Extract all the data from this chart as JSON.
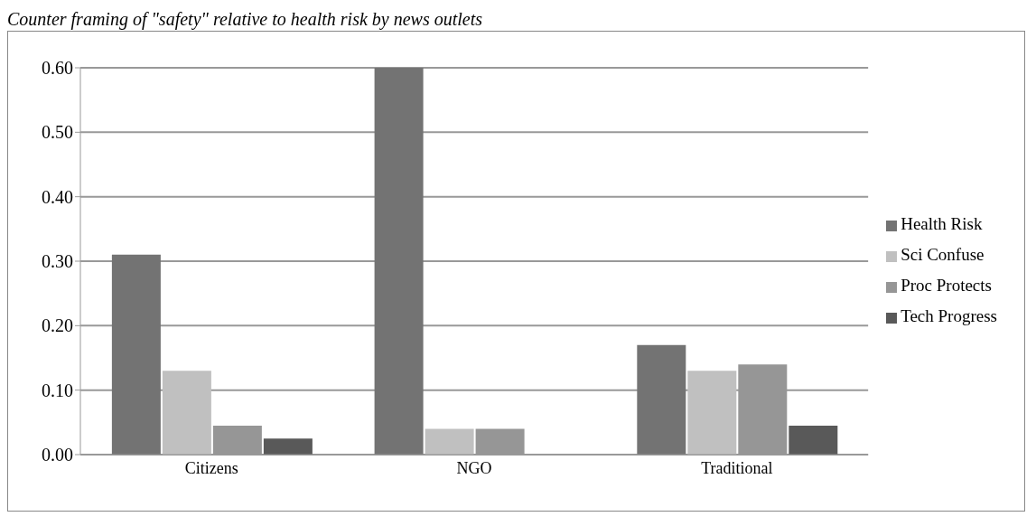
{
  "chart_data": {
    "type": "bar",
    "title": "Counter framing of \"safety\" relative to health risk by news outlets",
    "categories": [
      "Citizens",
      "NGO",
      "Traditional"
    ],
    "series": [
      {
        "name": "Health Risk",
        "color": "#737373",
        "values": [
          0.31,
          0.6,
          0.17
        ]
      },
      {
        "name": "Sci Confuse",
        "color": "#c0c0c0",
        "values": [
          0.13,
          0.04,
          0.13
        ]
      },
      {
        "name": "Proc Protects",
        "color": "#969696",
        "values": [
          0.045,
          0.04,
          0.14
        ]
      },
      {
        "name": "Tech Progress",
        "color": "#595959",
        "values": [
          0.025,
          0,
          0.045
        ]
      }
    ],
    "ylim": [
      0,
      0.6
    ],
    "yticks": [
      {
        "value": 0,
        "label": "0.00"
      },
      {
        "value": 0.1,
        "label": "0.10"
      },
      {
        "value": 0.2,
        "label": "0.20"
      },
      {
        "value": 0.3,
        "label": "0.30"
      },
      {
        "value": 0.4,
        "label": "0.40"
      },
      {
        "value": 0.5,
        "label": "0.50"
      },
      {
        "value": 0.6,
        "label": "0.60"
      }
    ],
    "grid": "y",
    "legend": "right"
  }
}
